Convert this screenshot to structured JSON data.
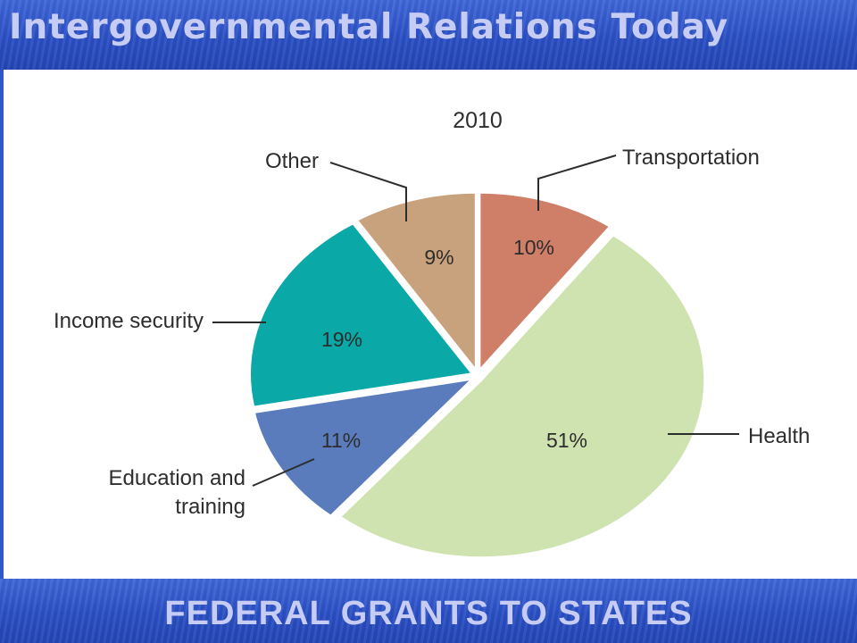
{
  "slide": {
    "title": "Intergovernmental Relations Today",
    "footer": "FEDERAL GRANTS TO STATES",
    "band_color": "#2f55c8",
    "title_color": "#c7ccf4"
  },
  "chart_data": {
    "type": "pie",
    "title": "2010",
    "slices": [
      {
        "label": "Transportation",
        "value": 10,
        "value_label": "10%",
        "color": "#cf7e68"
      },
      {
        "label": "Health",
        "value": 51,
        "value_label": "51%",
        "color": "#cfe3b0"
      },
      {
        "label": "Education and training",
        "label_lines": [
          "Education and",
          "training"
        ],
        "value": 11,
        "value_label": "11%",
        "color": "#5a7cbc"
      },
      {
        "label": "Income security",
        "value": 19,
        "value_label": "19%",
        "color": "#0aa8a6"
      },
      {
        "label": "Other",
        "value": 9,
        "value_label": "9%",
        "color": "#c8a27c"
      }
    ]
  }
}
